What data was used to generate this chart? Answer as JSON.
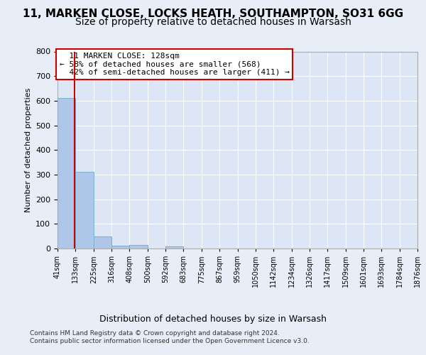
{
  "title": "11, MARKEN CLOSE, LOCKS HEATH, SOUTHAMPTON, SO31 6GG",
  "subtitle": "Size of property relative to detached houses in Warsash",
  "xlabel": "Distribution of detached houses by size in Warsash",
  "ylabel": "Number of detached properties",
  "bin_edges": [
    41,
    133,
    225,
    316,
    408,
    500,
    592,
    683,
    775,
    867,
    959,
    1050,
    1142,
    1234,
    1326,
    1417,
    1509,
    1601,
    1693,
    1784,
    1876
  ],
  "bar_heights": [
    610,
    310,
    50,
    12,
    13,
    0,
    8,
    0,
    0,
    0,
    0,
    0,
    0,
    0,
    0,
    0,
    0,
    0,
    0,
    0
  ],
  "bar_color": "#aec6e8",
  "bar_edge_color": "#7aafd4",
  "property_size": 128,
  "property_label": "11 MARKEN CLOSE: 128sqm",
  "pct_smaller": 58,
  "count_smaller": 568,
  "pct_larger_semi": 42,
  "count_larger_semi": 411,
  "vline_color": "#cc0000",
  "annotation_box_color": "#cc0000",
  "ylim": [
    0,
    800
  ],
  "yticks": [
    0,
    100,
    200,
    300,
    400,
    500,
    600,
    700,
    800
  ],
  "bg_color": "#e8eef7",
  "plot_bg_color": "#dce6f5",
  "grid_color": "#ffffff",
  "footer_line1": "Contains HM Land Registry data © Crown copyright and database right 2024.",
  "footer_line2": "Contains public sector information licensed under the Open Government Licence v3.0.",
  "title_fontsize": 11,
  "subtitle_fontsize": 10,
  "ann_fontsize": 8,
  "ylabel_fontsize": 8,
  "xlabel_fontsize": 9,
  "tick_fontsize": 7
}
